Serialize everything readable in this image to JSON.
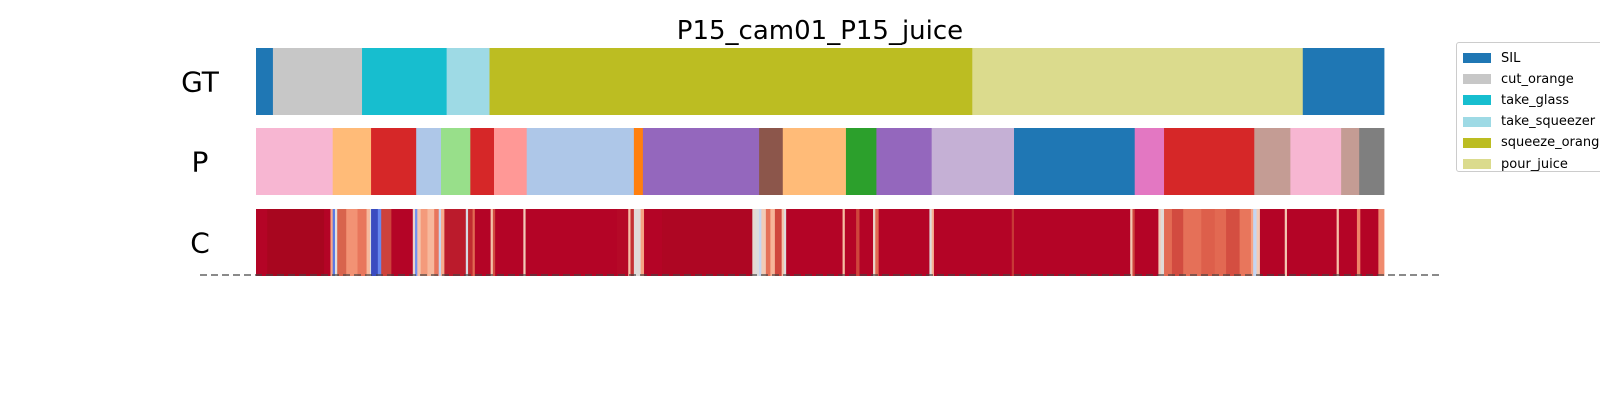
{
  "chart_data": {
    "type": "segmentation",
    "title": "P15_cam01_P15_juice",
    "rows": [
      {
        "label": "GT",
        "segments": [
          {
            "start": 0.0,
            "end": 0.015,
            "color": "#1f77b4"
          },
          {
            "start": 0.015,
            "end": 0.094,
            "color": "#c7c7c7"
          },
          {
            "start": 0.094,
            "end": 0.169,
            "color": "#17becf"
          },
          {
            "start": 0.169,
            "end": 0.207,
            "color": "#9edae5"
          },
          {
            "start": 0.207,
            "end": 0.635,
            "color": "#bcbd22"
          },
          {
            "start": 0.635,
            "end": 0.928,
            "color": "#dbdb8d"
          },
          {
            "start": 0.928,
            "end": 1.0,
            "color": "#1f77b4"
          }
        ]
      },
      {
        "label": "P",
        "segments": [
          {
            "start": 0.0,
            "end": 0.068,
            "color": "#f7b6d2"
          },
          {
            "start": 0.068,
            "end": 0.102,
            "color": "#ffbb78"
          },
          {
            "start": 0.102,
            "end": 0.142,
            "color": "#d62728"
          },
          {
            "start": 0.142,
            "end": 0.164,
            "color": "#aec7e8"
          },
          {
            "start": 0.164,
            "end": 0.19,
            "color": "#98df8a"
          },
          {
            "start": 0.19,
            "end": 0.211,
            "color": "#d62728"
          },
          {
            "start": 0.211,
            "end": 0.24,
            "color": "#ff9896"
          },
          {
            "start": 0.24,
            "end": 0.335,
            "color": "#aec7e8"
          },
          {
            "start": 0.335,
            "end": 0.343,
            "color": "#ff7f0e"
          },
          {
            "start": 0.343,
            "end": 0.446,
            "color": "#9467bd"
          },
          {
            "start": 0.446,
            "end": 0.467,
            "color": "#8c564b"
          },
          {
            "start": 0.467,
            "end": 0.523,
            "color": "#ffbb78"
          },
          {
            "start": 0.523,
            "end": 0.55,
            "color": "#2ca02c"
          },
          {
            "start": 0.55,
            "end": 0.599,
            "color": "#9467bd"
          },
          {
            "start": 0.599,
            "end": 0.672,
            "color": "#c5b0d5"
          },
          {
            "start": 0.672,
            "end": 0.779,
            "color": "#1f77b4"
          },
          {
            "start": 0.779,
            "end": 0.805,
            "color": "#e377c2"
          },
          {
            "start": 0.805,
            "end": 0.885,
            "color": "#d62728"
          },
          {
            "start": 0.885,
            "end": 0.917,
            "color": "#c49c94"
          },
          {
            "start": 0.917,
            "end": 0.962,
            "color": "#f7b6d2"
          },
          {
            "start": 0.962,
            "end": 0.978,
            "color": "#c49c94"
          },
          {
            "start": 0.978,
            "end": 1.0,
            "color": "#7f7f7f"
          }
        ]
      },
      {
        "label": "C",
        "base_color": "#b40426",
        "segments": [
          {
            "start": 0.0,
            "end": 0.01,
            "color": "#b40426"
          },
          {
            "start": 0.01,
            "end": 0.06,
            "color": "#a8061f"
          },
          {
            "start": 0.066,
            "end": 0.068,
            "color": "#f7a889"
          },
          {
            "start": 0.068,
            "end": 0.07,
            "color": "#5a78e4"
          },
          {
            "start": 0.07,
            "end": 0.072,
            "color": "#e0e0e0"
          },
          {
            "start": 0.072,
            "end": 0.08,
            "color": "#d8644d"
          },
          {
            "start": 0.08,
            "end": 0.09,
            "color": "#f29274"
          },
          {
            "start": 0.09,
            "end": 0.098,
            "color": "#e8765c"
          },
          {
            "start": 0.098,
            "end": 0.101,
            "color": "#f7b89c"
          },
          {
            "start": 0.101,
            "end": 0.102,
            "color": "#dcdddd"
          },
          {
            "start": 0.102,
            "end": 0.108,
            "color": "#3b4cc0"
          },
          {
            "start": 0.108,
            "end": 0.111,
            "color": "#6788ee"
          },
          {
            "start": 0.111,
            "end": 0.12,
            "color": "#cd423b"
          },
          {
            "start": 0.12,
            "end": 0.139,
            "color": "#b40426"
          },
          {
            "start": 0.139,
            "end": 0.141,
            "color": "#ead5c9"
          },
          {
            "start": 0.141,
            "end": 0.143,
            "color": "#6f92f3"
          },
          {
            "start": 0.143,
            "end": 0.146,
            "color": "#f5c4ac"
          },
          {
            "start": 0.146,
            "end": 0.152,
            "color": "#f49a7b"
          },
          {
            "start": 0.152,
            "end": 0.158,
            "color": "#f7b89c"
          },
          {
            "start": 0.158,
            "end": 0.162,
            "color": "#e8765c"
          },
          {
            "start": 0.162,
            "end": 0.164,
            "color": "#c5d6f2"
          },
          {
            "start": 0.164,
            "end": 0.167,
            "color": "#f7ac8e"
          },
          {
            "start": 0.167,
            "end": 0.186,
            "color": "#bb1b2c"
          },
          {
            "start": 0.186,
            "end": 0.188,
            "color": "#d5dbe5"
          },
          {
            "start": 0.188,
            "end": 0.192,
            "color": "#c12b30"
          },
          {
            "start": 0.192,
            "end": 0.194,
            "color": "#e26952"
          },
          {
            "start": 0.194,
            "end": 0.208,
            "color": "#b40426"
          },
          {
            "start": 0.208,
            "end": 0.21,
            "color": "#f5c0a7"
          },
          {
            "start": 0.21,
            "end": 0.212,
            "color": "#d24b40"
          },
          {
            "start": 0.212,
            "end": 0.237,
            "color": "#b40426"
          },
          {
            "start": 0.237,
            "end": 0.239,
            "color": "#f2cbb7"
          },
          {
            "start": 0.239,
            "end": 0.315,
            "color": "#b40426"
          },
          {
            "start": 0.32,
            "end": 0.33,
            "color": "#b50927"
          },
          {
            "start": 0.33,
            "end": 0.332,
            "color": "#f6bfa6"
          },
          {
            "start": 0.332,
            "end": 0.335,
            "color": "#c43032"
          },
          {
            "start": 0.335,
            "end": 0.341,
            "color": "#e0dbd8"
          },
          {
            "start": 0.341,
            "end": 0.344,
            "color": "#f6a283"
          },
          {
            "start": 0.344,
            "end": 0.36,
            "color": "#b40426"
          },
          {
            "start": 0.36,
            "end": 0.44,
            "color": "#ae0623"
          },
          {
            "start": 0.44,
            "end": 0.443,
            "color": "#e4d9d2"
          },
          {
            "start": 0.443,
            "end": 0.446,
            "color": "#dddcdc"
          },
          {
            "start": 0.446,
            "end": 0.448,
            "color": "#c5d6f2"
          },
          {
            "start": 0.448,
            "end": 0.452,
            "color": "#f2cbb7"
          },
          {
            "start": 0.452,
            "end": 0.456,
            "color": "#e57058"
          },
          {
            "start": 0.456,
            "end": 0.46,
            "color": "#f7b599"
          },
          {
            "start": 0.46,
            "end": 0.466,
            "color": "#d0473d"
          },
          {
            "start": 0.466,
            "end": 0.468,
            "color": "#f5c4ac"
          },
          {
            "start": 0.468,
            "end": 0.47,
            "color": "#dddcdc"
          },
          {
            "start": 0.47,
            "end": 0.52,
            "color": "#b40426"
          },
          {
            "start": 0.52,
            "end": 0.522,
            "color": "#f6bda2"
          },
          {
            "start": 0.522,
            "end": 0.532,
            "color": "#b40426"
          },
          {
            "start": 0.532,
            "end": 0.535,
            "color": "#cf453c"
          },
          {
            "start": 0.535,
            "end": 0.547,
            "color": "#b40426"
          },
          {
            "start": 0.547,
            "end": 0.549,
            "color": "#ead4c8"
          },
          {
            "start": 0.549,
            "end": 0.552,
            "color": "#e26952"
          },
          {
            "start": 0.552,
            "end": 0.597,
            "color": "#b40426"
          },
          {
            "start": 0.597,
            "end": 0.599,
            "color": "#dddcdc"
          },
          {
            "start": 0.599,
            "end": 0.601,
            "color": "#f7b194"
          },
          {
            "start": 0.601,
            "end": 0.67,
            "color": "#b40426"
          },
          {
            "start": 0.67,
            "end": 0.672,
            "color": "#c83836"
          },
          {
            "start": 0.672,
            "end": 0.775,
            "color": "#b40426"
          },
          {
            "start": 0.775,
            "end": 0.777,
            "color": "#f3c7b1"
          },
          {
            "start": 0.777,
            "end": 0.779,
            "color": "#cf453c"
          },
          {
            "start": 0.779,
            "end": 0.8,
            "color": "#b40426"
          },
          {
            "start": 0.8,
            "end": 0.802,
            "color": "#f2cbb7"
          },
          {
            "start": 0.802,
            "end": 0.805,
            "color": "#e0dbd8"
          },
          {
            "start": 0.805,
            "end": 0.812,
            "color": "#e36b54"
          },
          {
            "start": 0.812,
            "end": 0.822,
            "color": "#d24b40"
          },
          {
            "start": 0.822,
            "end": 0.838,
            "color": "#e57058"
          },
          {
            "start": 0.838,
            "end": 0.85,
            "color": "#dd5f4b"
          },
          {
            "start": 0.85,
            "end": 0.86,
            "color": "#e26952"
          },
          {
            "start": 0.86,
            "end": 0.872,
            "color": "#d44e41"
          },
          {
            "start": 0.872,
            "end": 0.882,
            "color": "#e8765c"
          },
          {
            "start": 0.882,
            "end": 0.884,
            "color": "#f6a586"
          },
          {
            "start": 0.884,
            "end": 0.887,
            "color": "#c5d6f2"
          },
          {
            "start": 0.887,
            "end": 0.89,
            "color": "#f2cbb7"
          },
          {
            "start": 0.89,
            "end": 0.912,
            "color": "#b40426"
          },
          {
            "start": 0.912,
            "end": 0.914,
            "color": "#f3c7b1"
          },
          {
            "start": 0.914,
            "end": 0.958,
            "color": "#b40426"
          },
          {
            "start": 0.958,
            "end": 0.96,
            "color": "#f6bfa6"
          },
          {
            "start": 0.96,
            "end": 0.976,
            "color": "#b40426"
          },
          {
            "start": 0.976,
            "end": 0.979,
            "color": "#ee8468"
          },
          {
            "start": 0.979,
            "end": 0.995,
            "color": "#b40426"
          },
          {
            "start": 0.995,
            "end": 1.0,
            "color": "#f08b6e"
          }
        ]
      }
    ],
    "legend": {
      "placement": "right",
      "entries": [
        {
          "label": "SIL",
          "color": "#1f77b4"
        },
        {
          "label": "cut_orange",
          "color": "#c7c7c7"
        },
        {
          "label": "take_glass",
          "color": "#17becf"
        },
        {
          "label": "take_squeezer",
          "color": "#9edae5"
        },
        {
          "label": "squeeze_orange",
          "color": "#bcbd22"
        },
        {
          "label": "pour_juice",
          "color": "#dbdb8d"
        }
      ]
    },
    "baseline": "dashed"
  }
}
